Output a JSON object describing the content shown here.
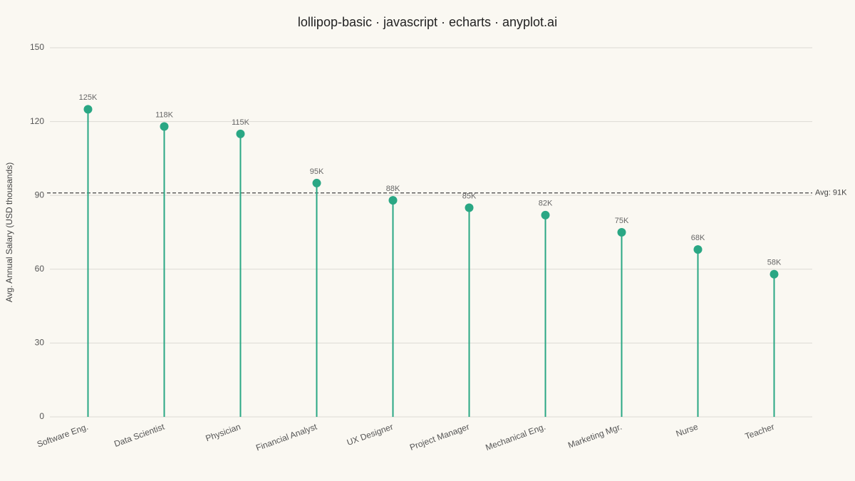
{
  "chart_data": {
    "type": "lollipop",
    "title": "lollipop-basic · javascript · echarts · anyplot.ai",
    "y_label": "Avg. Annual Salary (USD thousands)",
    "categories": [
      "Software Eng.",
      "Data Scientist",
      "Physician",
      "Financial Analyst",
      "UX Designer",
      "Project Manager",
      "Mechanical Eng.",
      "Marketing Mgr.",
      "Nurse",
      "Teacher"
    ],
    "values": [
      125,
      118,
      115,
      95,
      88,
      85,
      82,
      75,
      68,
      58
    ],
    "value_labels": [
      "125K",
      "118K",
      "115K",
      "95K",
      "88K",
      "85K",
      "82K",
      "75K",
      "68K",
      "58K"
    ],
    "color": "#2aa784",
    "ylim": [
      0,
      150
    ],
    "yticks": [
      0,
      30,
      60,
      90,
      120,
      150
    ],
    "grid": true,
    "reference_line": {
      "value": 91,
      "label": "Avg: 91K"
    }
  }
}
